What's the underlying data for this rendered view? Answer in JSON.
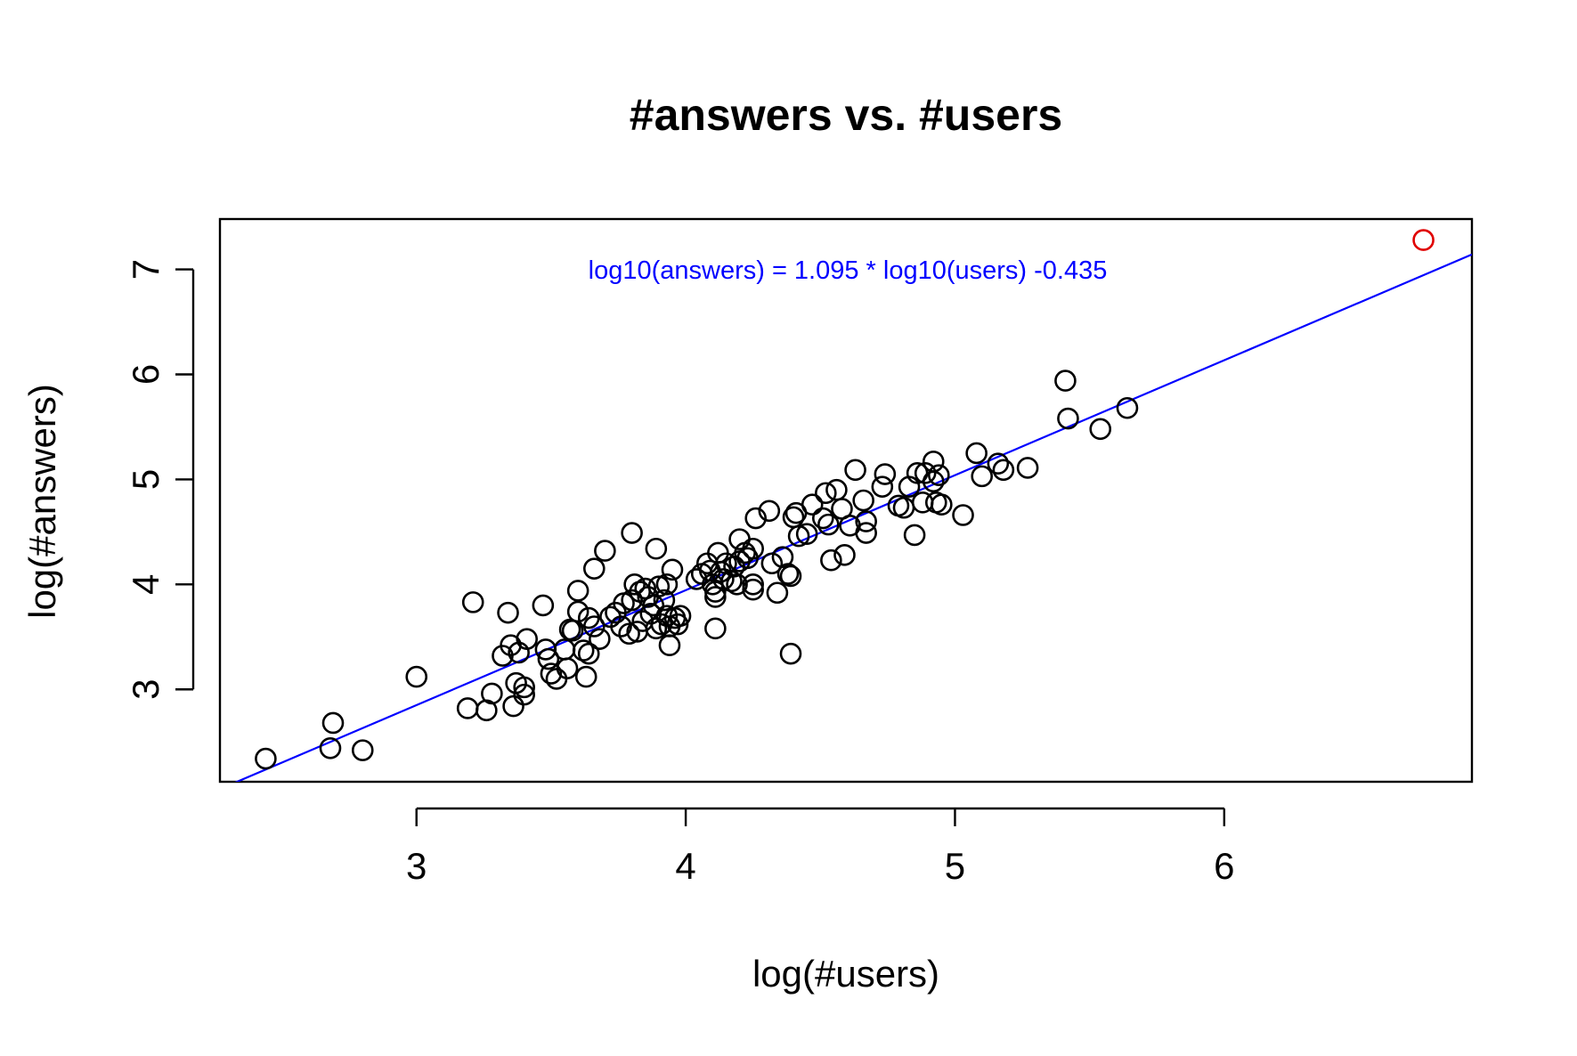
{
  "chart_data": {
    "type": "scatter",
    "title": "#answers vs. #users",
    "xlabel": "log(#users)",
    "ylabel": "log(#answers)",
    "xlim": [
      2.27,
      6.92
    ],
    "ylim": [
      2.12,
      7.48
    ],
    "x_ticks": [
      "3",
      "4",
      "5",
      "6"
    ],
    "y_ticks": [
      "3",
      "4",
      "5",
      "6",
      "7"
    ],
    "grid": false,
    "legend": "none",
    "annotation": "log10(answers) = 1.095 * log10(users) -0.435",
    "fit_line": {
      "slope": 1.095,
      "intercept": -0.435
    },
    "colors": {
      "points": "#000000",
      "highlight": "#e00000",
      "fit_line": "#0000ff",
      "annotation": "#0000ff"
    },
    "series": [
      {
        "points": [
          [
            2.44,
            2.34
          ],
          [
            2.68,
            2.44
          ],
          [
            2.69,
            2.68
          ],
          [
            2.8,
            2.42
          ],
          [
            3.0,
            3.12
          ],
          [
            3.19,
            2.82
          ],
          [
            3.21,
            3.83
          ],
          [
            3.26,
            2.8
          ],
          [
            3.28,
            2.96
          ],
          [
            3.32,
            3.32
          ],
          [
            3.34,
            3.73
          ],
          [
            3.35,
            3.42
          ],
          [
            3.36,
            2.84
          ],
          [
            3.37,
            3.06
          ],
          [
            3.38,
            3.35
          ],
          [
            3.4,
            2.95
          ],
          [
            3.4,
            3.02
          ],
          [
            3.41,
            3.48
          ],
          [
            3.47,
            3.8
          ],
          [
            3.48,
            3.38
          ],
          [
            3.49,
            3.29
          ],
          [
            3.5,
            3.15
          ],
          [
            3.52,
            3.1
          ],
          [
            3.55,
            3.38
          ],
          [
            3.56,
            3.2
          ],
          [
            3.57,
            3.57
          ],
          [
            3.58,
            3.56
          ],
          [
            3.6,
            3.94
          ],
          [
            3.6,
            3.74
          ],
          [
            3.62,
            3.37
          ],
          [
            3.63,
            3.12
          ],
          [
            3.64,
            3.34
          ],
          [
            3.64,
            3.68
          ],
          [
            3.66,
            3.6
          ],
          [
            3.66,
            4.15
          ],
          [
            3.68,
            3.48
          ],
          [
            3.7,
            4.32
          ],
          [
            3.72,
            3.69
          ],
          [
            3.74,
            3.73
          ],
          [
            3.76,
            3.6
          ],
          [
            3.77,
            3.82
          ],
          [
            3.79,
            3.53
          ],
          [
            3.8,
            4.49
          ],
          [
            3.8,
            3.85
          ],
          [
            3.81,
            4.0
          ],
          [
            3.82,
            3.55
          ],
          [
            3.83,
            3.93
          ],
          [
            3.84,
            3.65
          ],
          [
            3.85,
            3.96
          ],
          [
            3.86,
            3.88
          ],
          [
            3.87,
            3.72
          ],
          [
            3.88,
            3.8
          ],
          [
            3.89,
            3.58
          ],
          [
            3.89,
            4.34
          ],
          [
            3.9,
            3.98
          ],
          [
            3.91,
            3.62
          ],
          [
            3.92,
            3.85
          ],
          [
            3.93,
            4.0
          ],
          [
            3.93,
            3.7
          ],
          [
            3.94,
            3.6
          ],
          [
            3.94,
            3.42
          ],
          [
            3.95,
            4.14
          ],
          [
            3.96,
            3.68
          ],
          [
            3.97,
            3.62
          ],
          [
            3.98,
            3.7
          ],
          [
            4.04,
            4.05
          ],
          [
            4.06,
            4.1
          ],
          [
            4.08,
            4.2
          ],
          [
            4.09,
            4.13
          ],
          [
            4.1,
            4.0
          ],
          [
            4.11,
            3.88
          ],
          [
            4.11,
            3.93
          ],
          [
            4.11,
            3.58
          ],
          [
            4.12,
            4.3
          ],
          [
            4.13,
            4.12
          ],
          [
            4.14,
            4.05
          ],
          [
            4.15,
            4.2
          ],
          [
            4.17,
            4.03
          ],
          [
            4.18,
            4.17
          ],
          [
            4.19,
            4.0
          ],
          [
            4.2,
            4.43
          ],
          [
            4.2,
            4.22
          ],
          [
            4.22,
            4.3
          ],
          [
            4.23,
            4.25
          ],
          [
            4.25,
            4.34
          ],
          [
            4.25,
            4.0
          ],
          [
            4.25,
            3.95
          ],
          [
            4.26,
            4.63
          ],
          [
            4.31,
            4.7
          ],
          [
            4.32,
            4.2
          ],
          [
            4.34,
            3.92
          ],
          [
            4.36,
            4.26
          ],
          [
            4.38,
            4.1
          ],
          [
            4.39,
            4.08
          ],
          [
            4.39,
            3.34
          ],
          [
            4.4,
            4.64
          ],
          [
            4.41,
            4.68
          ],
          [
            4.42,
            4.46
          ],
          [
            4.45,
            4.48
          ],
          [
            4.47,
            4.76
          ],
          [
            4.51,
            4.63
          ],
          [
            4.52,
            4.87
          ],
          [
            4.53,
            4.57
          ],
          [
            4.54,
            4.23
          ],
          [
            4.56,
            4.9
          ],
          [
            4.58,
            4.72
          ],
          [
            4.59,
            4.28
          ],
          [
            4.61,
            4.56
          ],
          [
            4.63,
            5.09
          ],
          [
            4.66,
            4.8
          ],
          [
            4.67,
            4.6
          ],
          [
            4.67,
            4.49
          ],
          [
            4.73,
            4.93
          ],
          [
            4.74,
            5.05
          ],
          [
            4.79,
            4.75
          ],
          [
            4.81,
            4.73
          ],
          [
            4.83,
            4.93
          ],
          [
            4.85,
            4.47
          ],
          [
            4.86,
            5.06
          ],
          [
            4.88,
            4.78
          ],
          [
            4.89,
            5.06
          ],
          [
            4.92,
            5.17
          ],
          [
            4.92,
            4.98
          ],
          [
            4.93,
            4.78
          ],
          [
            4.94,
            5.04
          ],
          [
            4.95,
            4.76
          ],
          [
            5.03,
            4.66
          ],
          [
            5.08,
            5.25
          ],
          [
            5.1,
            5.03
          ],
          [
            5.16,
            5.15
          ],
          [
            5.18,
            5.09
          ],
          [
            5.27,
            5.11
          ],
          [
            5.41,
            5.94
          ],
          [
            5.42,
            5.58
          ],
          [
            5.54,
            5.48
          ],
          [
            5.64,
            5.68
          ]
        ]
      },
      {
        "points": [
          [
            6.74,
            7.28
          ]
        ]
      }
    ]
  }
}
